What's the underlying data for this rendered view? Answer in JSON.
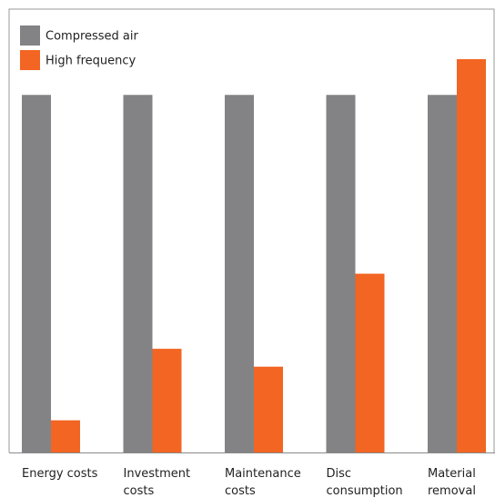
{
  "chart_data": {
    "type": "bar",
    "categories": [
      "Energy costs",
      "Investment costs",
      "Maintenance costs",
      "Disc consumption",
      "Material removal"
    ],
    "series": [
      {
        "name": "Compressed air",
        "color": "#838386",
        "values": [
          100,
          100,
          100,
          100,
          100
        ]
      },
      {
        "name": "High frequency",
        "color": "#f26522",
        "values": [
          9,
          29,
          24,
          50,
          110
        ]
      }
    ],
    "ylim": [
      0,
      124
    ]
  }
}
